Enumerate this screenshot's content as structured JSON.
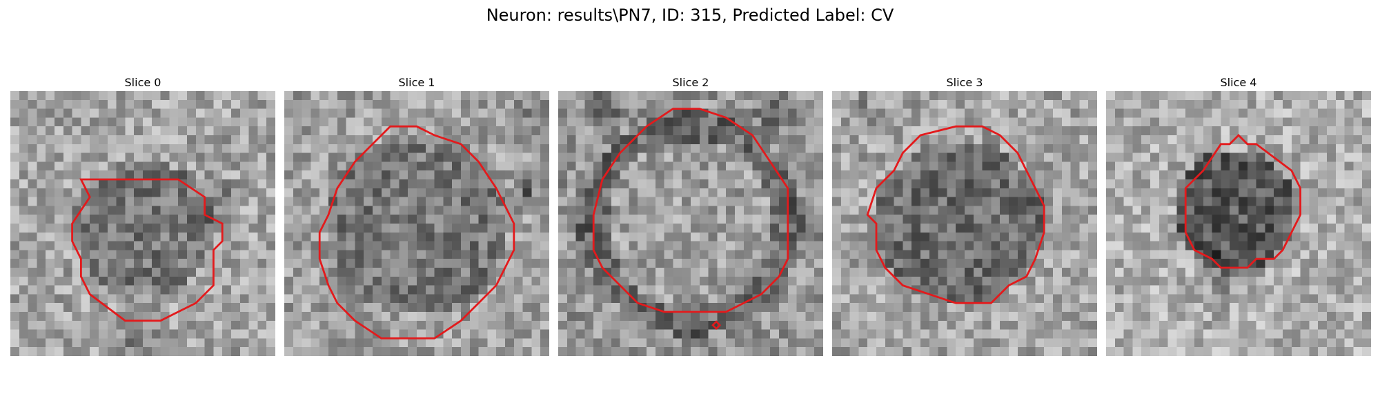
{
  "figure": {
    "title": "Neuron: results\\PN7, ID: 315, Predicted Label: CV"
  },
  "panels": [
    {
      "title": "Slice 0"
    },
    {
      "title": "Slice 1"
    },
    {
      "title": "Slice 2"
    },
    {
      "title": "Slice 3"
    },
    {
      "title": "Slice 4"
    }
  ],
  "colors": {
    "contour": "#e31a1c",
    "background": "#ffffff"
  }
}
